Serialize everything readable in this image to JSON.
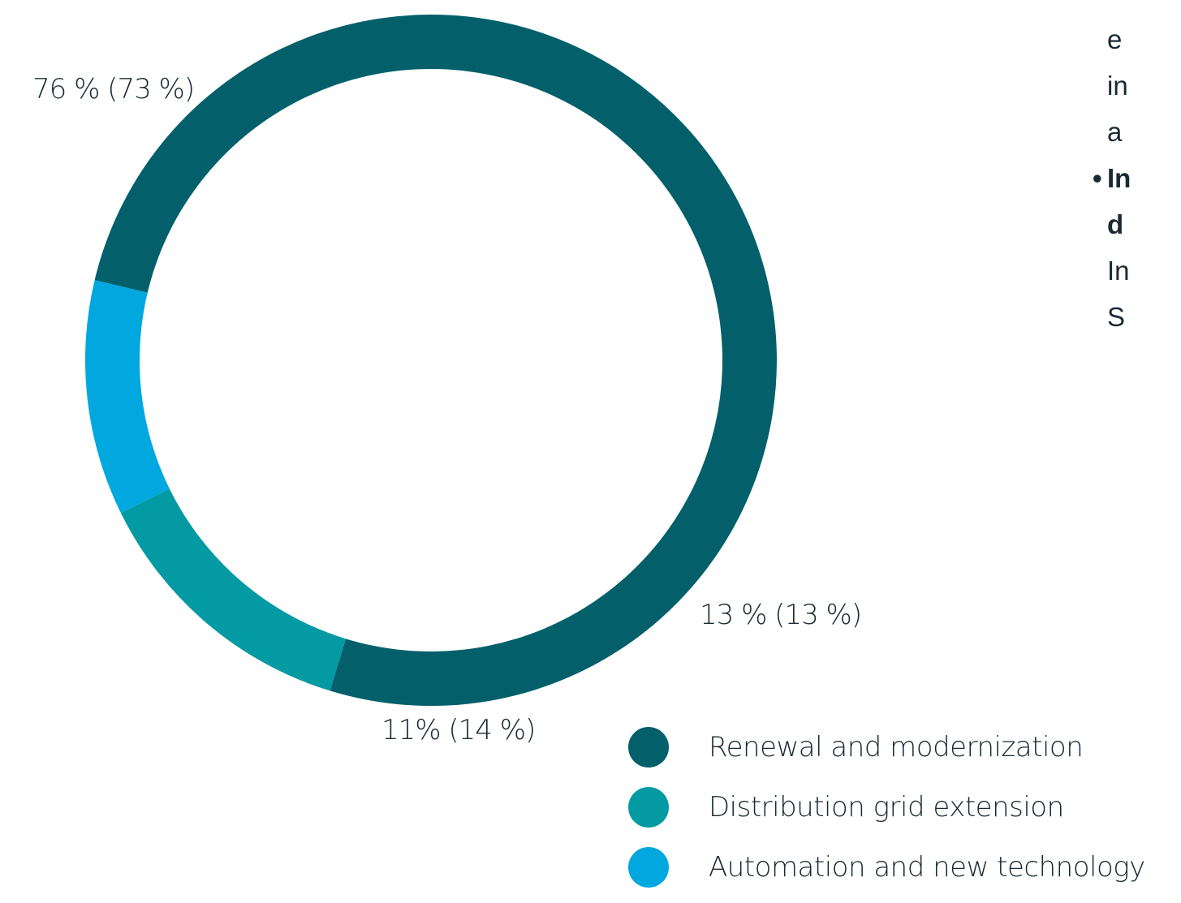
{
  "chart_data": {
    "type": "pie",
    "variant": "donut",
    "title": "",
    "categories": [
      "Renewal and modernization",
      "Distribution grid extension",
      "Automation and new technology"
    ],
    "values": [
      76,
      13,
      11
    ],
    "previous_values": [
      73,
      13,
      14
    ],
    "data_labels": [
      "76 % (73 %)",
      "13 % (13 %)",
      "11% (14 %)"
    ],
    "colors": [
      "#03606a",
      "#039aa4",
      "#00a8df"
    ],
    "legend_position": "bottom-right"
  },
  "side_text": {
    "lines": [
      "e",
      "in",
      "a",
      "In",
      "d",
      "In",
      "S"
    ]
  }
}
